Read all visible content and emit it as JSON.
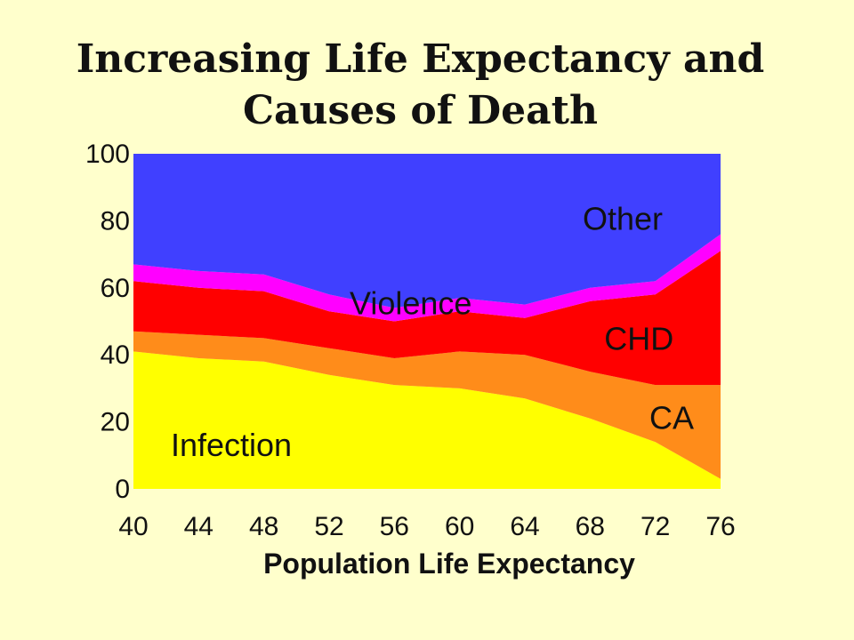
{
  "chart_data": {
    "type": "area",
    "stacked": true,
    "title": [
      "Increasing Life Expectancy and",
      "Causes of Death"
    ],
    "xlabel": "Population Life Expectancy",
    "ylabel": "",
    "xlim": [
      40,
      76
    ],
    "ylim": [
      0,
      100
    ],
    "xticks": [
      40,
      44,
      48,
      52,
      56,
      60,
      64,
      68,
      72,
      76
    ],
    "yticks": [
      0,
      20,
      40,
      60,
      80,
      100
    ],
    "grid": false,
    "x": [
      40,
      44,
      48,
      52,
      56,
      60,
      64,
      68,
      72,
      76
    ],
    "series": [
      {
        "name": "Infection",
        "color": "#FFFF00",
        "values": [
          41,
          39,
          38,
          34,
          31,
          30,
          27,
          21,
          14,
          3
        ]
      },
      {
        "name": "CA",
        "color": "#FF8C1A",
        "values": [
          6,
          7,
          7,
          8,
          8,
          11,
          13,
          14,
          17,
          28
        ]
      },
      {
        "name": "CHD",
        "color": "#FF0000",
        "values": [
          15,
          14,
          14,
          11,
          11,
          12,
          11,
          21,
          27,
          40
        ]
      },
      {
        "name": "Violence",
        "color": "#FF00FF",
        "values": [
          5,
          5,
          5,
          5,
          4,
          4,
          4,
          4,
          4,
          5
        ]
      },
      {
        "name": "Other",
        "color": "#4040FF",
        "values": [
          33,
          35,
          36,
          42,
          46,
          43,
          45,
          40,
          38,
          24
        ]
      }
    ]
  }
}
